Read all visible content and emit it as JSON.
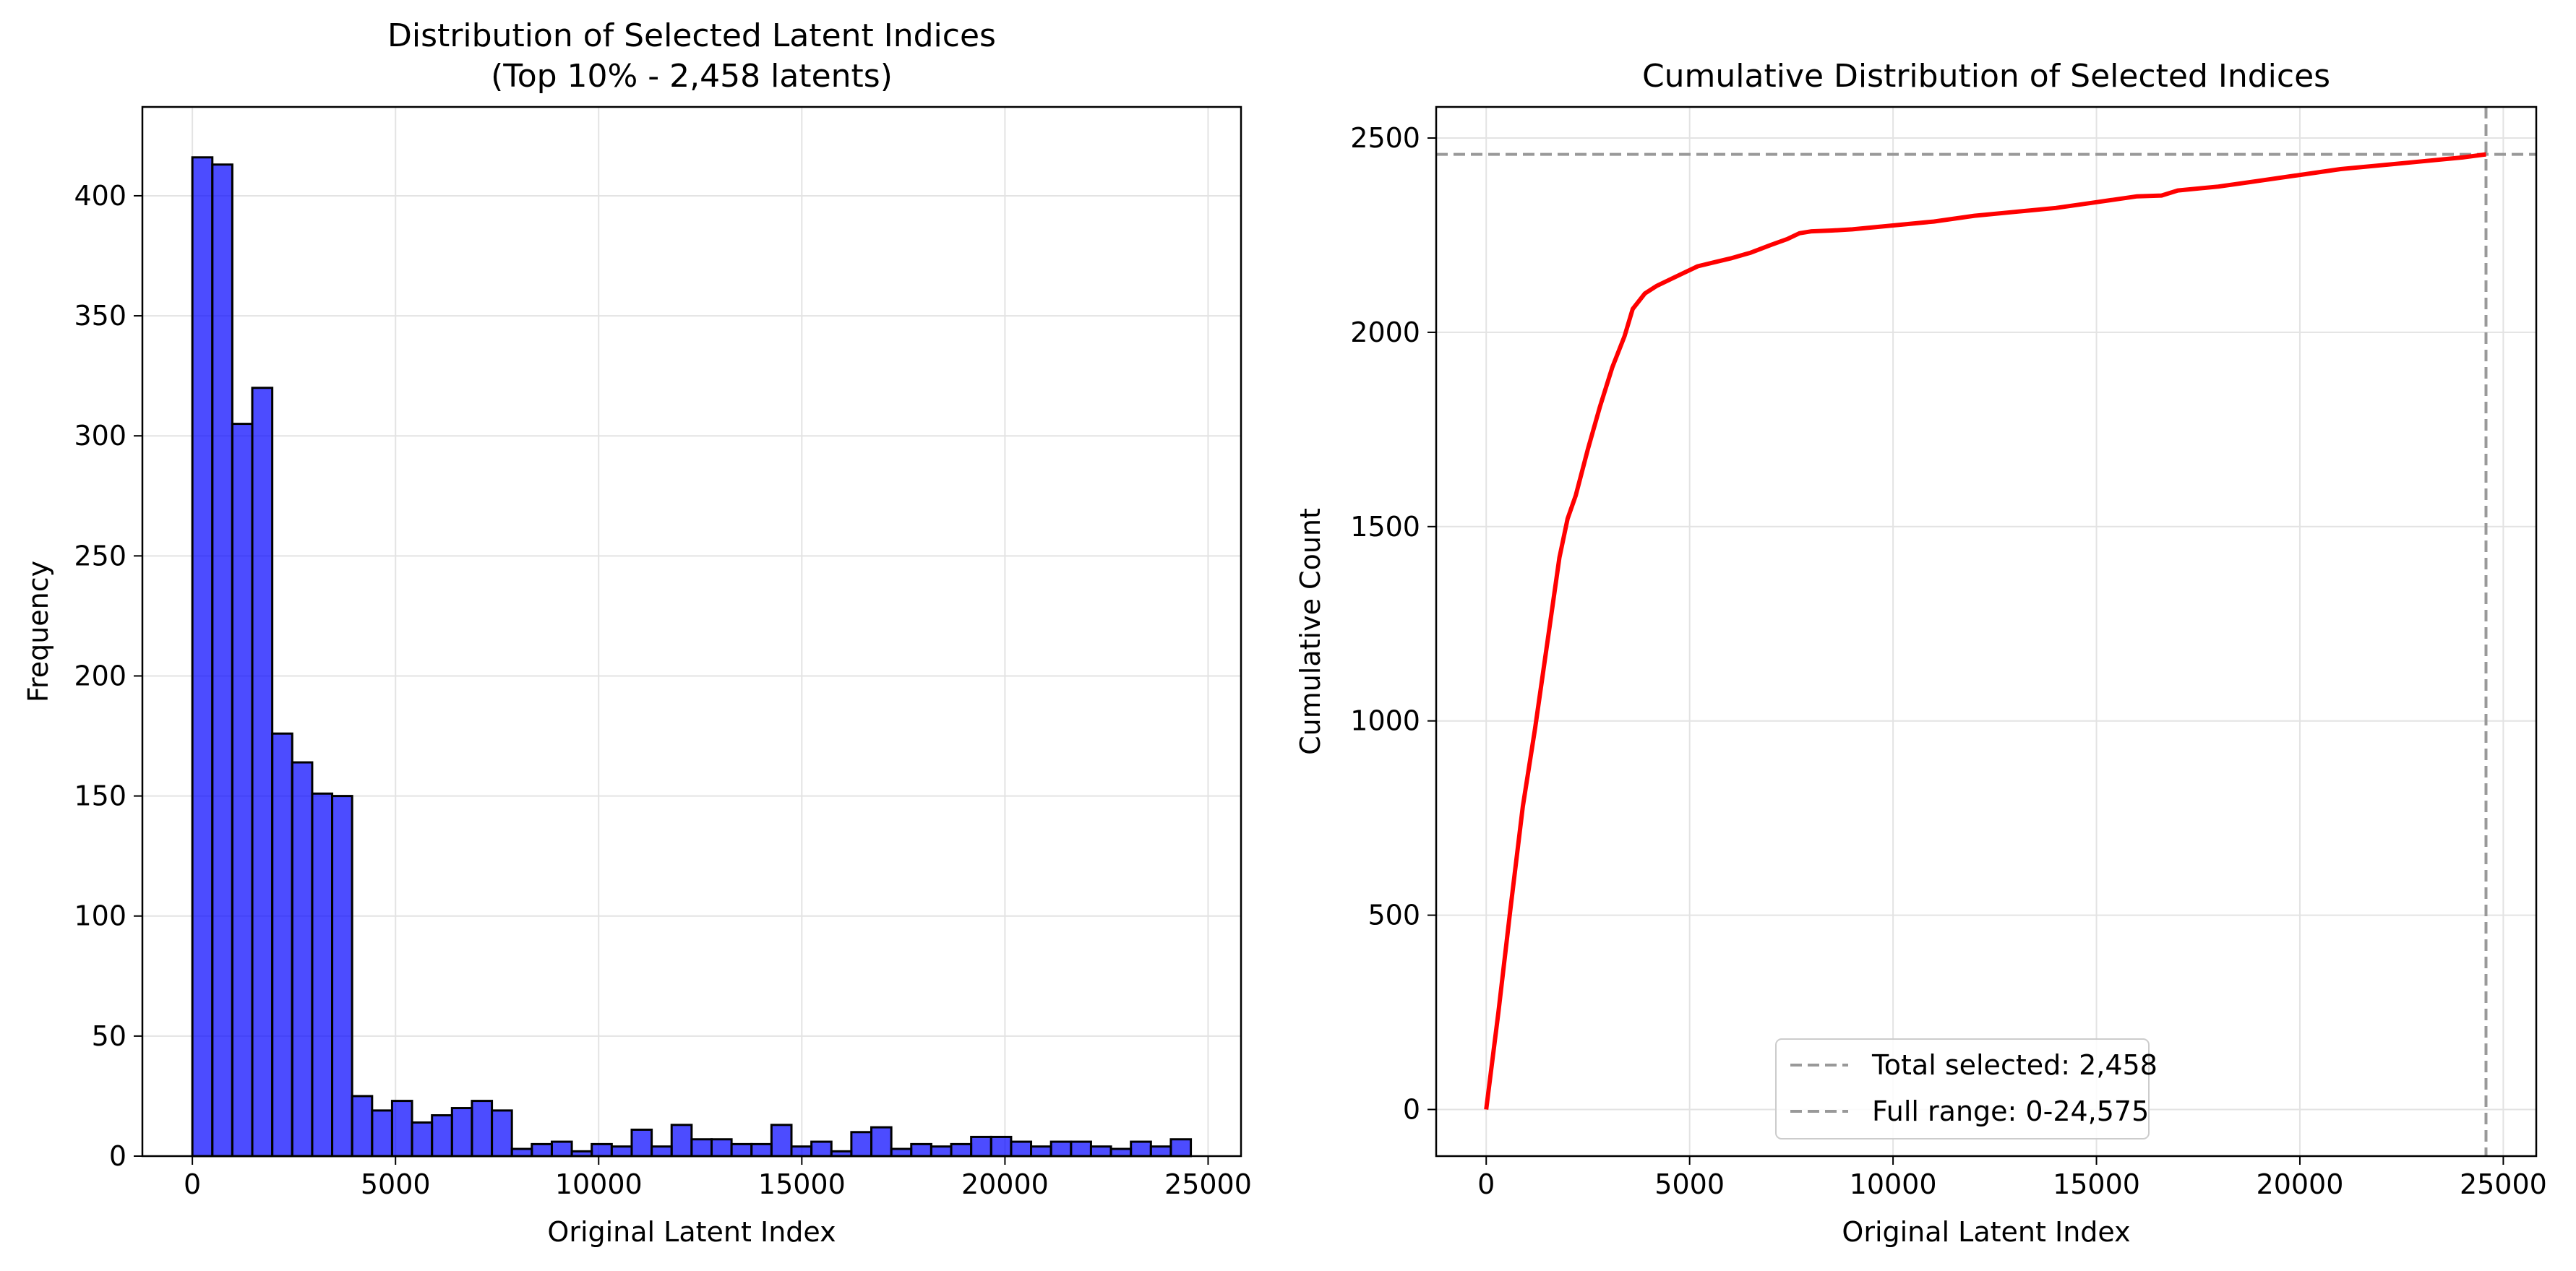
{
  "chart_data": [
    {
      "type": "bar",
      "title": "Distribution of Selected Latent Indices",
      "subtitle": "(Top 10% - 2,458 latents)",
      "xlabel": "Original Latent Index",
      "ylabel": "Frequency",
      "xlim": [
        -1230,
        25810
      ],
      "ylim": [
        0,
        437
      ],
      "xticks": [
        0,
        5000,
        10000,
        15000,
        20000,
        25000
      ],
      "yticks": [
        0,
        50,
        100,
        150,
        200,
        250,
        300,
        350,
        400
      ],
      "grid": true,
      "bar_color": "#0000ff",
      "bar_edge_color": "#000000",
      "bin_start": 0,
      "bin_width": 491.5,
      "values": [
        416,
        413,
        305,
        320,
        176,
        164,
        151,
        150,
        25,
        19,
        23,
        14,
        17,
        20,
        23,
        19,
        3,
        5,
        6,
        2,
        5,
        4,
        11,
        4,
        13,
        7,
        7,
        5,
        5,
        13,
        4,
        6,
        2,
        10,
        12,
        3,
        5,
        4,
        5,
        8,
        8,
        6,
        4,
        6,
        6,
        4,
        3,
        6,
        4,
        7
      ]
    },
    {
      "type": "line",
      "title": "Cumulative Distribution of Selected Indices",
      "xlabel": "Original Latent Index",
      "ylabel": "Cumulative Count",
      "xlim": [
        -1230,
        25810
      ],
      "ylim": [
        -120,
        2580
      ],
      "xticks": [
        0,
        5000,
        10000,
        15000,
        20000,
        25000
      ],
      "yticks": [
        0,
        500,
        1000,
        1500,
        2000,
        2500
      ],
      "grid": true,
      "legend_position": "lower-center",
      "series": [
        {
          "color": "#ff0000",
          "x": [
            0,
            300,
            600,
            900,
            1200,
            1500,
            1800,
            2000,
            2200,
            2500,
            2800,
            3100,
            3400,
            3600,
            3900,
            4200,
            4500,
            4800,
            5200,
            5600,
            6000,
            6500,
            7000,
            7400,
            7700,
            8000,
            8500,
            9000,
            10000,
            11000,
            12000,
            13000,
            14000,
            15000,
            16000,
            16600,
            17000,
            18000,
            19000,
            20000,
            21000,
            22000,
            23000,
            24000,
            24575
          ],
          "y": [
            0,
            250,
            520,
            780,
            980,
            1200,
            1420,
            1520,
            1580,
            1700,
            1810,
            1910,
            1990,
            2060,
            2100,
            2120,
            2135,
            2150,
            2170,
            2180,
            2190,
            2205,
            2225,
            2240,
            2255,
            2260,
            2262,
            2265,
            2275,
            2285,
            2300,
            2310,
            2320,
            2335,
            2350,
            2352,
            2365,
            2375,
            2390,
            2405,
            2420,
            2430,
            2440,
            2450,
            2458
          ]
        }
      ],
      "reference_lines": [
        {
          "orientation": "horizontal",
          "value": 2458,
          "color": "#999999",
          "label": "Total selected: 2,458"
        },
        {
          "orientation": "vertical",
          "value": 24575,
          "color": "#999999",
          "label": "Full range: 0-24,575"
        }
      ]
    }
  ]
}
